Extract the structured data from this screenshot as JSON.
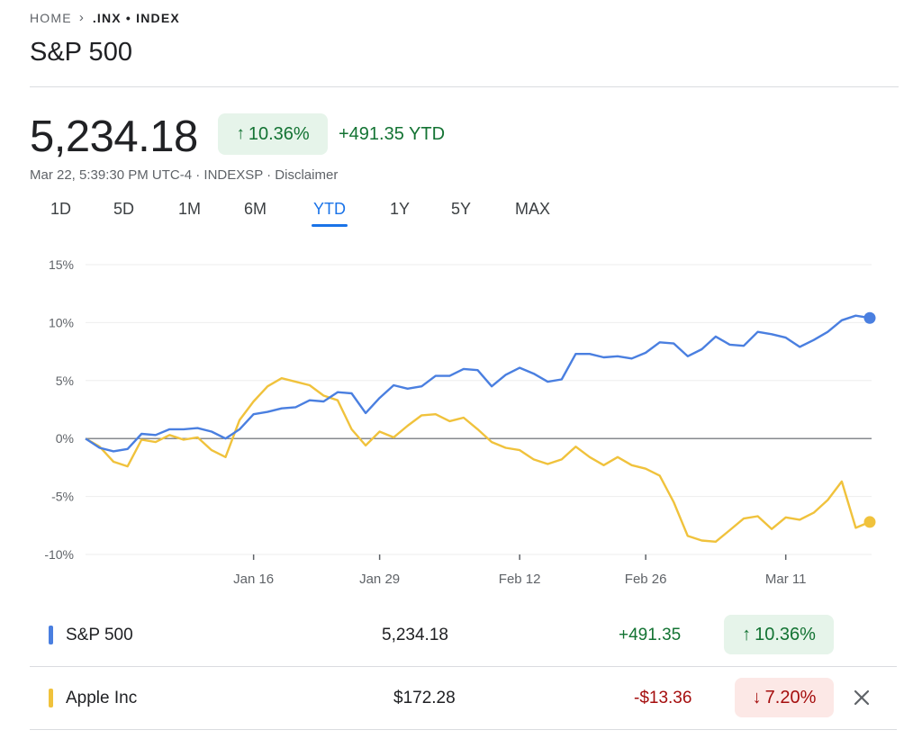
{
  "breadcrumb": {
    "home": "HOME",
    "current": ".INX • INDEX"
  },
  "title": "S&P 500",
  "quote": {
    "price": "5,234.18",
    "percent_change": "10.36%",
    "change_label": "+491.35 YTD",
    "meta": "Mar 22, 5:39:30 PM UTC-4 · INDEXSP · Disclaimer"
  },
  "ranges": [
    "1D",
    "5D",
    "1M",
    "6M",
    "YTD",
    "1Y",
    "5Y",
    "MAX"
  ],
  "active_range": "YTD",
  "colors": {
    "positive": "#137333",
    "negative": "#a50e0e",
    "sp500_line": "#4a7fe0",
    "apple_line": "#f0c23c",
    "active_tab": "#1a73e8"
  },
  "chart_data": {
    "type": "line",
    "ylabel": "",
    "xlabel": "",
    "ylim": [
      -10,
      15
    ],
    "y_ticks": [
      "15%",
      "10%",
      "5%",
      "0%",
      "-5%",
      "-10%"
    ],
    "y_tick_values": [
      15,
      10,
      5,
      0,
      -5,
      -10
    ],
    "x_ticks": [
      "Jan 16",
      "Jan 29",
      "Feb 12",
      "Feb 26",
      "Mar 11"
    ],
    "x_tick_index": [
      12,
      21,
      31,
      40,
      50
    ],
    "grid": true,
    "zero_line": true,
    "series": [
      {
        "name": "S&P 500",
        "color": "#4a7fe0",
        "values": [
          0.0,
          -0.8,
          -1.1,
          -0.9,
          0.4,
          0.3,
          0.8,
          0.8,
          0.9,
          0.6,
          0.0,
          0.8,
          2.1,
          2.3,
          2.6,
          2.7,
          3.3,
          3.2,
          4.0,
          3.9,
          2.2,
          3.5,
          4.6,
          4.3,
          4.5,
          5.4,
          5.4,
          6.0,
          5.9,
          4.5,
          5.5,
          6.1,
          5.6,
          4.9,
          5.1,
          7.3,
          7.3,
          7.0,
          7.1,
          6.9,
          7.4,
          8.3,
          8.2,
          7.1,
          7.7,
          8.8,
          8.1,
          8.0,
          9.2,
          9.0,
          8.7,
          7.9,
          8.5,
          9.2,
          10.2,
          10.6,
          10.4
        ]
      },
      {
        "name": "Apple Inc",
        "color": "#f0c23c",
        "values": [
          0.0,
          -0.7,
          -2.0,
          -2.4,
          -0.1,
          -0.3,
          0.3,
          -0.1,
          0.1,
          -1.0,
          -1.6,
          1.6,
          3.2,
          4.5,
          5.2,
          4.9,
          4.6,
          3.7,
          3.3,
          0.8,
          -0.6,
          0.6,
          0.1,
          1.1,
          2.0,
          2.1,
          1.5,
          1.8,
          0.8,
          -0.3,
          -0.8,
          -1.0,
          -1.8,
          -2.2,
          -1.8,
          -0.7,
          -1.6,
          -2.3,
          -1.6,
          -2.3,
          -2.6,
          -3.2,
          -5.5,
          -8.4,
          -8.8,
          -8.9,
          -7.9,
          -6.9,
          -6.7,
          -7.8,
          -6.8,
          -7.0,
          -6.4,
          -5.3,
          -3.7,
          -7.7,
          -7.2
        ]
      }
    ]
  },
  "comparison": [
    {
      "name": "S&P 500",
      "value": "5,234.18",
      "change": "+491.35",
      "percent": "10.36%",
      "direction": "up",
      "color": "#4a7fe0"
    },
    {
      "name": "Apple Inc",
      "value": "$172.28",
      "change": "-$13.36",
      "percent": "7.20%",
      "direction": "down",
      "color": "#f0c23c"
    }
  ]
}
